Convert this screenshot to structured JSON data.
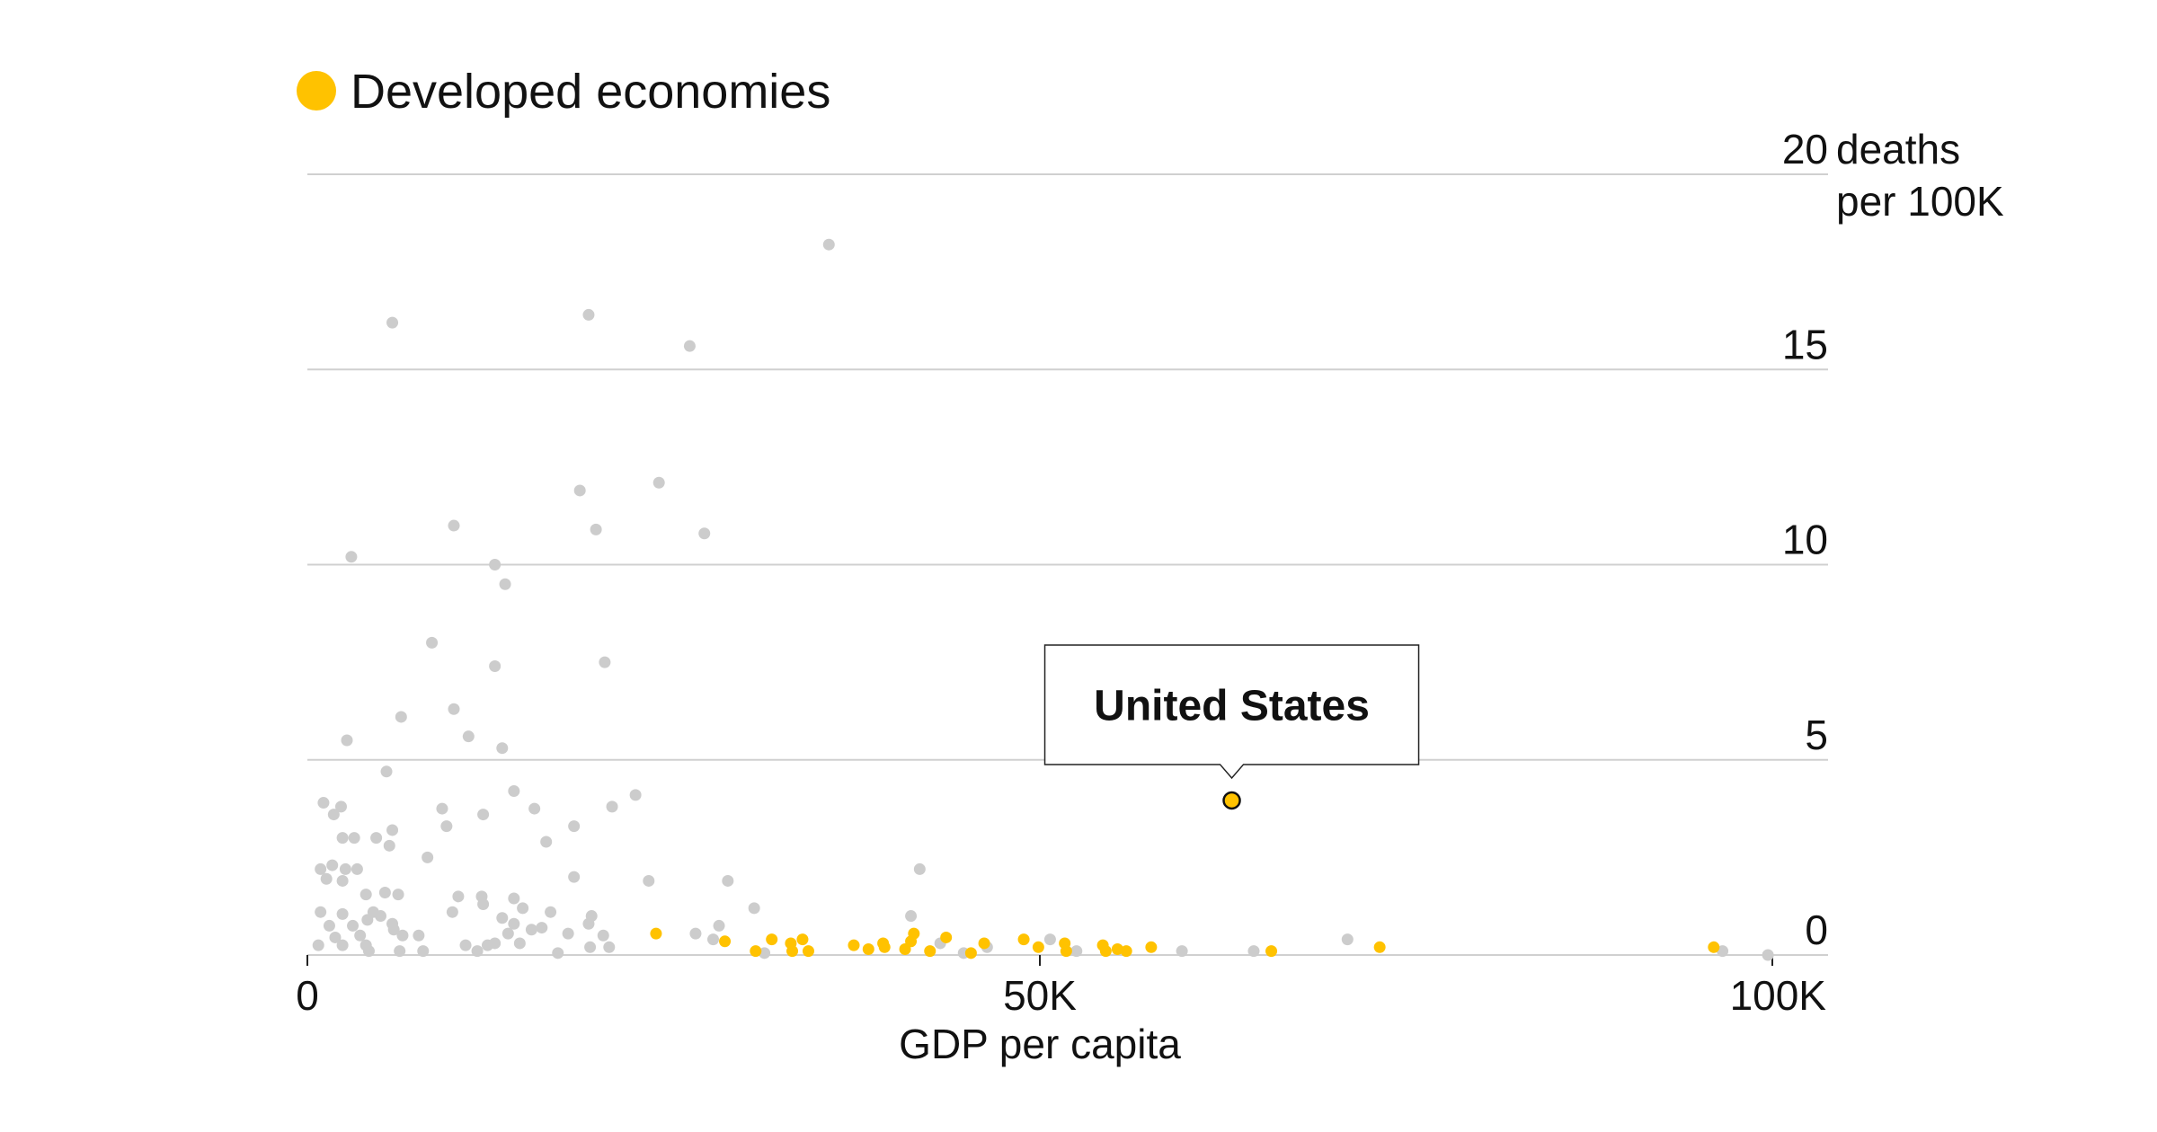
{
  "chart_data": {
    "type": "scatter",
    "title": "",
    "xlabel": "GDP per capita",
    "ylabel": "deaths per 100K",
    "ylabel_lines": [
      "deaths",
      "per 100K"
    ],
    "xlim": [
      0,
      100000
    ],
    "ylim": [
      0,
      20
    ],
    "grid": "horizontal",
    "legend_placement": "top-left",
    "x_ticks": [
      {
        "value": 0,
        "label": "0"
      },
      {
        "value": 50000,
        "label": "50K"
      },
      {
        "value": 100000,
        "label": "100K"
      }
    ],
    "y_ticks": [
      {
        "value": 0,
        "label": "0"
      },
      {
        "value": 5,
        "label": "5"
      },
      {
        "value": 10,
        "label": "10"
      },
      {
        "value": 15,
        "label": "15"
      },
      {
        "value": 20,
        "label": "20"
      }
    ],
    "colors": {
      "other": "#cccccc",
      "developed": "#ffc200",
      "grid": "#d0d0d0",
      "highlight_outline": "#111111"
    },
    "legend": [
      {
        "name": "Developed economies",
        "color": "#ffc200"
      }
    ],
    "annotation": {
      "label": "United States",
      "x": 63100,
      "y": 3.96
    },
    "series": [
      {
        "key": "other",
        "color": "#cccccc",
        "points": [
          [
            35600,
            18.2
          ],
          [
            5800,
            16.2
          ],
          [
            19200,
            16.4
          ],
          [
            26100,
            15.6
          ],
          [
            18600,
            11.9
          ],
          [
            24000,
            12.1
          ],
          [
            10000,
            11.0
          ],
          [
            19700,
            10.9
          ],
          [
            27100,
            10.8
          ],
          [
            3000,
            10.2
          ],
          [
            12800,
            10.0
          ],
          [
            13500,
            9.5
          ],
          [
            8500,
            8.0
          ],
          [
            20300,
            7.5
          ],
          [
            12800,
            7.4
          ],
          [
            10000,
            6.3
          ],
          [
            6400,
            6.1
          ],
          [
            11000,
            5.6
          ],
          [
            2700,
            5.5
          ],
          [
            13300,
            5.3
          ],
          [
            5400,
            4.7
          ],
          [
            22400,
            4.1
          ],
          [
            14100,
            4.2
          ],
          [
            20800,
            3.8
          ],
          [
            15500,
            3.75
          ],
          [
            1100,
            3.9
          ],
          [
            2300,
            3.8
          ],
          [
            1800,
            3.6
          ],
          [
            9200,
            3.75
          ],
          [
            12000,
            3.6
          ],
          [
            9500,
            3.3
          ],
          [
            18200,
            3.3
          ],
          [
            5800,
            3.2
          ],
          [
            3200,
            3.0
          ],
          [
            4700,
            3.0
          ],
          [
            16300,
            2.9
          ],
          [
            5600,
            2.8
          ],
          [
            2400,
            3.0
          ],
          [
            8200,
            2.5
          ],
          [
            900,
            2.2
          ],
          [
            1700,
            2.3
          ],
          [
            2600,
            2.2
          ],
          [
            3400,
            2.2
          ],
          [
            1300,
            1.95
          ],
          [
            2400,
            1.9
          ],
          [
            41800,
            2.2
          ],
          [
            18200,
            2.0
          ],
          [
            23300,
            1.9
          ],
          [
            28700,
            1.9
          ],
          [
            4000,
            1.55
          ],
          [
            5300,
            1.6
          ],
          [
            6200,
            1.55
          ],
          [
            10300,
            1.5
          ],
          [
            11900,
            1.5
          ],
          [
            14100,
            1.45
          ],
          [
            12000,
            1.3
          ],
          [
            14700,
            1.2
          ],
          [
            30500,
            1.2
          ],
          [
            900,
            1.1
          ],
          [
            2400,
            1.05
          ],
          [
            4500,
            1.1
          ],
          [
            9900,
            1.1
          ],
          [
            16600,
            1.1
          ],
          [
            19400,
            1.0
          ],
          [
            41200,
            1.0
          ],
          [
            4100,
            0.9
          ],
          [
            5000,
            1.0
          ],
          [
            13300,
            0.95
          ],
          [
            1500,
            0.75
          ],
          [
            3100,
            0.75
          ],
          [
            5800,
            0.8
          ],
          [
            14100,
            0.8
          ],
          [
            19200,
            0.8
          ],
          [
            28100,
            0.75
          ],
          [
            5900,
            0.65
          ],
          [
            16000,
            0.7
          ],
          [
            15300,
            0.65
          ],
          [
            1900,
            0.45
          ],
          [
            3600,
            0.5
          ],
          [
            6500,
            0.5
          ],
          [
            7600,
            0.5
          ],
          [
            13700,
            0.55
          ],
          [
            17800,
            0.55
          ],
          [
            20200,
            0.5
          ],
          [
            26500,
            0.55
          ],
          [
            750,
            0.25
          ],
          [
            2400,
            0.25
          ],
          [
            4000,
            0.25
          ],
          [
            10800,
            0.25
          ],
          [
            12300,
            0.25
          ],
          [
            12800,
            0.3
          ],
          [
            14500,
            0.3
          ],
          [
            19300,
            0.2
          ],
          [
            20600,
            0.2
          ],
          [
            6300,
            0.1
          ],
          [
            4200,
            0.1
          ],
          [
            7900,
            0.1
          ],
          [
            17100,
            0.05
          ],
          [
            31200,
            0.05
          ],
          [
            27700,
            0.4
          ],
          [
            43200,
            0.3
          ],
          [
            46400,
            0.2
          ],
          [
            44800,
            0.05
          ],
          [
            50700,
            0.4
          ],
          [
            52500,
            0.1
          ],
          [
            59700,
            0.1
          ],
          [
            64600,
            0.1
          ],
          [
            71000,
            0.4
          ],
          [
            96600,
            0.1
          ],
          [
            99700,
            0.0
          ],
          [
            11600,
            0.1
          ]
        ]
      },
      {
        "key": "developed",
        "name": "Developed economies",
        "color": "#ffc200",
        "points": [
          [
            23800,
            0.55
          ],
          [
            28500,
            0.35
          ],
          [
            30600,
            0.1
          ],
          [
            31700,
            0.4
          ],
          [
            33000,
            0.3
          ],
          [
            33800,
            0.4
          ],
          [
            33100,
            0.1
          ],
          [
            34200,
            0.1
          ],
          [
            37300,
            0.25
          ],
          [
            38300,
            0.15
          ],
          [
            39300,
            0.3
          ],
          [
            39400,
            0.2
          ],
          [
            40800,
            0.15
          ],
          [
            41200,
            0.35
          ],
          [
            41400,
            0.55
          ],
          [
            42500,
            0.1
          ],
          [
            43600,
            0.45
          ],
          [
            45300,
            0.05
          ],
          [
            46200,
            0.3
          ],
          [
            48900,
            0.4
          ],
          [
            49900,
            0.2
          ],
          [
            51700,
            0.3
          ],
          [
            51800,
            0.1
          ],
          [
            54300,
            0.25
          ],
          [
            54500,
            0.1
          ],
          [
            55300,
            0.15
          ],
          [
            55900,
            0.1
          ],
          [
            57600,
            0.2
          ],
          [
            65800,
            0.1
          ],
          [
            73200,
            0.2
          ],
          [
            96000,
            0.2
          ]
        ]
      }
    ]
  }
}
